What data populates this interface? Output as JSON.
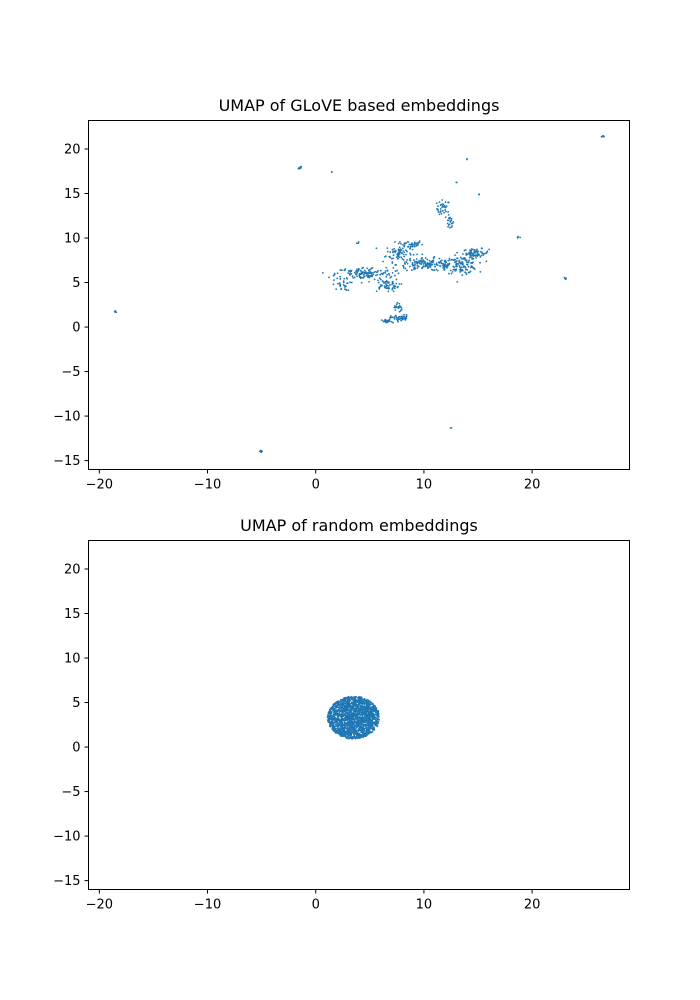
{
  "figure": {
    "background": "#ffffff"
  },
  "chart_data": [
    {
      "type": "scatter",
      "title": "UMAP of GLoVE based embeddings",
      "xlabel": "",
      "ylabel": "",
      "xlim": [
        -21,
        29
      ],
      "ylim": [
        -16,
        23.2
      ],
      "xticks": [
        -20,
        -10,
        0,
        10,
        20
      ],
      "yticks": [
        -15,
        -10,
        -5,
        0,
        5,
        10,
        15,
        20
      ],
      "grid": false,
      "point_color": "#1f77b4",
      "clusters": [
        {
          "x": 26.6,
          "y": 21.4,
          "spread": [
            0.15,
            0.1
          ],
          "count": 8
        },
        {
          "x": -1.5,
          "y": 17.9,
          "spread": [
            0.2,
            0.15
          ],
          "count": 8
        },
        {
          "x": 1.5,
          "y": 17.4,
          "spread": [
            0.05,
            0.05
          ],
          "count": 2
        },
        {
          "x": 14.0,
          "y": 18.9,
          "spread": [
            0.05,
            0.05
          ],
          "count": 2
        },
        {
          "x": 13.0,
          "y": 16.3,
          "spread": [
            0.05,
            0.05
          ],
          "count": 2
        },
        {
          "x": 15.1,
          "y": 14.9,
          "spread": [
            0.05,
            0.05
          ],
          "count": 2
        },
        {
          "x": 11.8,
          "y": 13.3,
          "spread": [
            0.5,
            0.8
          ],
          "count": 35
        },
        {
          "x": 12.4,
          "y": 11.7,
          "spread": [
            0.3,
            0.6
          ],
          "count": 20
        },
        {
          "x": 18.7,
          "y": 10.1,
          "spread": [
            0.15,
            0.1
          ],
          "count": 5
        },
        {
          "x": 23.0,
          "y": 5.4,
          "spread": [
            0.15,
            0.15
          ],
          "count": 6
        },
        {
          "x": -18.5,
          "y": 1.7,
          "spread": [
            0.1,
            0.1
          ],
          "count": 6
        },
        {
          "x": -5.0,
          "y": -14.0,
          "spread": [
            0.15,
            0.1
          ],
          "count": 6
        },
        {
          "x": 12.5,
          "y": -11.3,
          "spread": [
            0.05,
            0.05
          ],
          "count": 2
        },
        {
          "x": 3.9,
          "y": 9.5,
          "spread": [
            0.1,
            0.1
          ],
          "count": 3
        },
        {
          "x": 8.7,
          "y": 9.3,
          "spread": [
            1.0,
            0.4
          ],
          "count": 40
        },
        {
          "x": 7.7,
          "y": 8.3,
          "spread": [
            1.0,
            0.8
          ],
          "count": 80
        },
        {
          "x": 14.8,
          "y": 8.3,
          "spread": [
            1.0,
            0.4
          ],
          "count": 70
        },
        {
          "x": 10.5,
          "y": 7.0,
          "spread": [
            2.5,
            0.6
          ],
          "count": 170
        },
        {
          "x": 13.5,
          "y": 7.0,
          "spread": [
            1.2,
            0.8
          ],
          "count": 110
        },
        {
          "x": 4.5,
          "y": 6.0,
          "spread": [
            2.2,
            0.6
          ],
          "count": 140
        },
        {
          "x": 6.5,
          "y": 4.7,
          "spread": [
            1.0,
            0.6
          ],
          "count": 60
        },
        {
          "x": 2.4,
          "y": 4.7,
          "spread": [
            0.7,
            0.5
          ],
          "count": 25
        },
        {
          "x": 7.6,
          "y": 2.2,
          "spread": [
            0.3,
            0.5
          ],
          "count": 20
        },
        {
          "x": 7.8,
          "y": 1.0,
          "spread": [
            0.7,
            0.3
          ],
          "count": 50
        },
        {
          "x": 6.6,
          "y": 0.6,
          "spread": [
            0.4,
            0.2
          ],
          "count": 25
        }
      ]
    },
    {
      "type": "scatter",
      "title": "UMAP of random embeddings",
      "xlabel": "",
      "ylabel": "",
      "xlim": [
        -21,
        29
      ],
      "ylim": [
        -16,
        23.2
      ],
      "xticks": [
        -20,
        -10,
        0,
        10,
        20
      ],
      "yticks": [
        -15,
        -10,
        -5,
        0,
        5,
        10,
        15,
        20
      ],
      "grid": false,
      "point_color": "#1f77b4",
      "disc": {
        "center": [
          3.5,
          3.3
        ],
        "radius": [
          2.4,
          2.4
        ],
        "count": 1800
      }
    }
  ]
}
